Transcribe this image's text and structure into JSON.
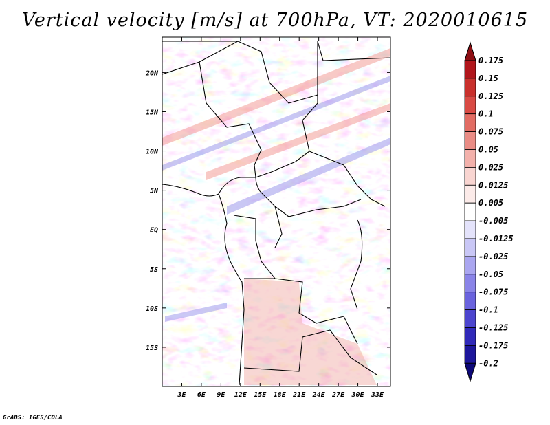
{
  "title": "Vertical velocity [m/s] at 700hPa, VT: 2020010615",
  "credit": "GrADS: IGES/COLA",
  "map": {
    "lon_range": [
      0,
      35
    ],
    "lat_range": [
      -20,
      24.5
    ],
    "lon_labels": [
      "3E",
      "6E",
      "9E",
      "12E",
      "15E",
      "18E",
      "21E",
      "24E",
      "27E",
      "30E",
      "33E"
    ],
    "lat_labels": [
      "20N",
      "15N",
      "10N",
      "5N",
      "EQ",
      "5S",
      "10S",
      "15S"
    ],
    "region": "Central Africa",
    "field": "vertical velocity",
    "units": "m/s",
    "pressure_level": "700hPa"
  },
  "colorbar": {
    "labels": [
      "0.175",
      "0.15",
      "0.125",
      "0.1",
      "0.075",
      "0.05",
      "0.025",
      "0.0125",
      "0.005",
      "-0.005",
      "-0.0125",
      "-0.025",
      "-0.05",
      "-0.075",
      "-0.1",
      "-0.125",
      "-0.175",
      "-0.2"
    ],
    "colors": [
      "#8e0f14",
      "#b1161c",
      "#c9302c",
      "#d94a44",
      "#e26c63",
      "#ea8c85",
      "#f3b1ab",
      "#f9d5d1",
      "#fcebe9",
      "#ffffff",
      "#e4e3fb",
      "#c9c7f6",
      "#aaa6f0",
      "#8a84e8",
      "#6a63de",
      "#4c45cf",
      "#3029b9",
      "#1d169b",
      "#0d0878"
    ]
  }
}
